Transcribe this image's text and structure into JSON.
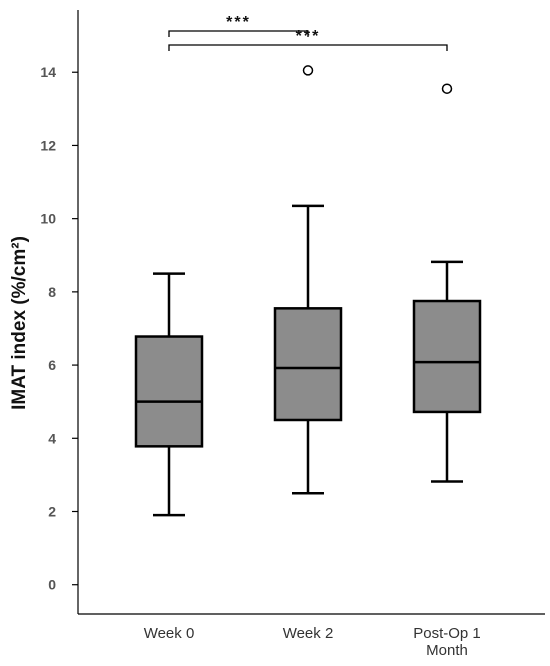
{
  "chart_data": {
    "type": "box",
    "ylabel": "IMAT index (%/cm²)",
    "xlabel": "",
    "title": "",
    "ylim": [
      -0.8,
      15.7
    ],
    "yticks": [
      0,
      2,
      4,
      6,
      8,
      10,
      12,
      14
    ],
    "grid": false,
    "categories": [
      {
        "lines": [
          "Week 0"
        ]
      },
      {
        "lines": [
          "Week 2"
        ]
      },
      {
        "lines": [
          "Post-Op 1",
          "Month"
        ]
      }
    ],
    "boxes": [
      {
        "whisker_low": 1.9,
        "q1": 3.78,
        "median": 5.0,
        "q3": 6.78,
        "whisker_high": 8.5,
        "outliers": []
      },
      {
        "whisker_low": 2.5,
        "q1": 4.5,
        "median": 5.92,
        "q3": 7.55,
        "whisker_high": 10.35,
        "outliers": [
          14.05
        ]
      },
      {
        "whisker_low": 2.82,
        "q1": 4.72,
        "median": 6.08,
        "q3": 7.75,
        "whisker_high": 8.82,
        "outliers": [
          13.55
        ]
      }
    ],
    "box_color": "#8c8c8c",
    "line_color": "#000000",
    "significance": [
      {
        "from": 0,
        "to": 1,
        "level": 0,
        "label": "***"
      },
      {
        "from": 0,
        "to": 2,
        "level": 1,
        "label": "***"
      }
    ]
  }
}
